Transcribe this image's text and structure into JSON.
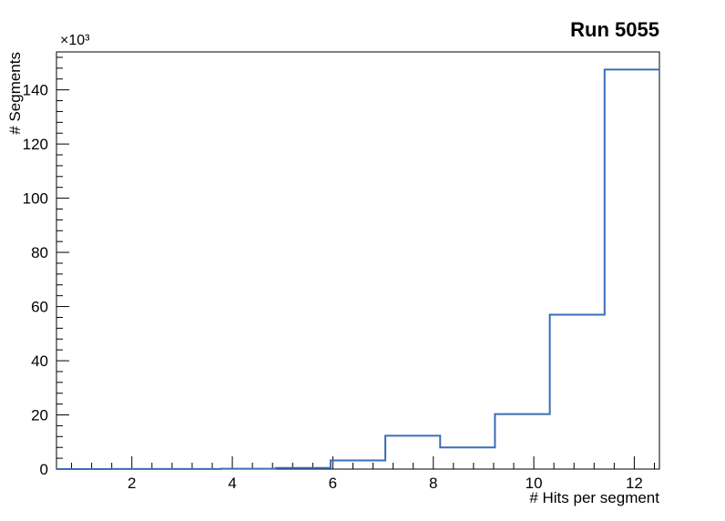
{
  "page": {
    "background": "#ffffff",
    "frame_color": "#000000"
  },
  "chart_data": {
    "type": "bar",
    "subtype": "step-histogram",
    "title": "Run 5055",
    "xlabel": "# Hits per segment",
    "ylabel": "# Segments",
    "y_axis_multiplier_label": "×10³",
    "y_units": "thousands of segments",
    "xlim": [
      0.5,
      12.5
    ],
    "ylim": [
      0,
      154
    ],
    "grid": false,
    "legend": false,
    "line_color": "#3a6db8",
    "bin_edges": [
      0.5,
      1.591,
      2.682,
      3.773,
      4.864,
      5.955,
      7.045,
      8.136,
      9.227,
      10.318,
      11.409,
      12.5
    ],
    "values": [
      0.02,
      0.03,
      0.06,
      0.12,
      0.4,
      3.2,
      12.3,
      8.0,
      20.3,
      57.0,
      147.5
    ],
    "x_ticks": [
      2,
      4,
      6,
      8,
      10,
      12
    ],
    "y_ticks": [
      0,
      20,
      40,
      60,
      80,
      100,
      120,
      140
    ],
    "x_minor_step": 0.4,
    "y_minor_step": 4
  }
}
